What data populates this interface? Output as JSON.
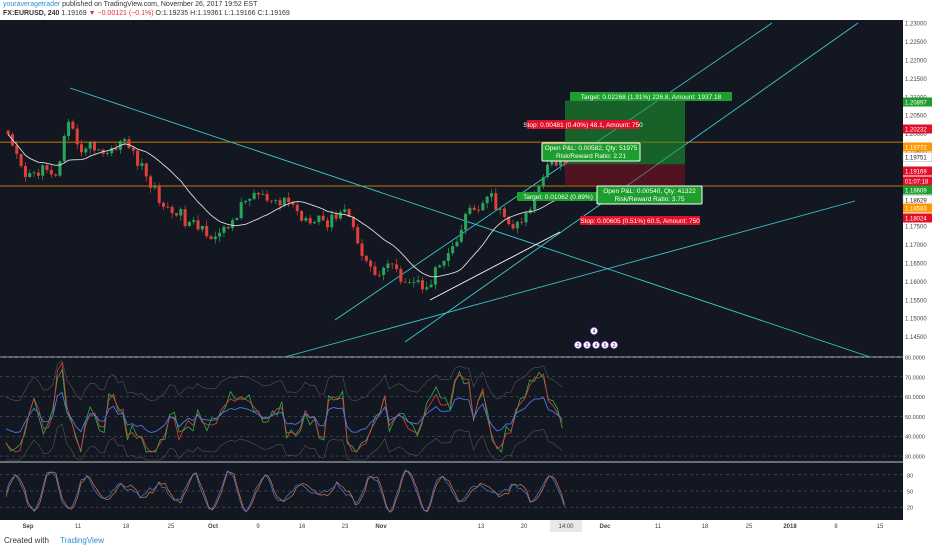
{
  "header": {
    "user": "youraveragetrader",
    "published": "published on TradingView.com, November 26, 2017 19:52 EST",
    "symbol": "FX:EURUSD, 240",
    "last": "1.19169",
    "change": "▼ −0.00121 (−0.1%)",
    "ohlc": "O:1.19235 H:1.19361 L:1.19166 C:1.19169"
  },
  "footer": {
    "created": "Created with",
    "brand": "TradingView"
  },
  "colors": {
    "bg": "#131722",
    "up": "#26a65b",
    "down": "#e0403a",
    "cyan": "#3ec6cc",
    "white": "#e8e8e8",
    "orange": "#ff9800",
    "target": "#1e9e2e",
    "stop": "#e0102a"
  },
  "chart_data": [
    {
      "type": "candlestick",
      "title": "FX:EURUSD, 240",
      "ylim": [
        1.1395,
        1.2308
      ],
      "y_ticks": [
        1.145,
        1.15,
        1.155,
        1.16,
        1.165,
        1.17,
        1.175,
        1.18,
        1.185,
        1.19,
        1.195,
        1.2,
        1.205,
        1.21,
        1.215,
        1.22,
        1.225,
        1.23
      ],
      "x_ticks": [
        "Sep",
        "11",
        "18",
        "25",
        "Oct",
        "9",
        "16",
        "23",
        "Nov",
        "13",
        "20",
        "14:00",
        "Dec",
        "11",
        "18",
        "25",
        "2018",
        "8",
        "15"
      ],
      "close_path": [
        1.1985,
        1.193,
        1.188,
        1.189,
        1.191,
        1.188,
        1.19,
        1.202,
        1.199,
        1.195,
        1.197,
        1.1955,
        1.1945,
        1.198,
        1.1975,
        1.194,
        1.19,
        1.186,
        1.182,
        1.179,
        1.1795,
        1.176,
        1.175,
        1.1745,
        1.173,
        1.172,
        1.1745,
        1.178,
        1.181,
        1.184,
        1.183,
        1.181,
        1.18,
        1.183,
        1.1795,
        1.177,
        1.1775,
        1.178,
        1.175,
        1.179,
        1.18,
        1.174,
        1.168,
        1.163,
        1.162,
        1.165,
        1.162,
        1.161,
        1.16,
        1.159,
        1.16,
        1.164,
        1.166,
        1.169,
        1.176,
        1.181,
        1.178,
        1.184,
        1.18,
        1.176,
        1.1745,
        1.176,
        1.18,
        1.187,
        1.193,
        1.1925,
        1.19169
      ],
      "price_labels": [
        {
          "value": "1.20897",
          "color": "#1e9e2e"
        },
        {
          "value": "1.20232",
          "color": "#e0102a"
        },
        {
          "value": "1.19772",
          "color": "#ff9800"
        },
        {
          "value": "1.19751",
          "color": "#ffffff"
        },
        {
          "value": "1.19169",
          "color": "#e0102a"
        },
        {
          "value": "01:07:18",
          "color": "#e0102a"
        },
        {
          "value": "1.18609",
          "color": "#1e9e2e"
        },
        {
          "value": "1.18629",
          "color": "#ffffff"
        },
        {
          "value": "1.18583",
          "color": "#ff9800"
        },
        {
          "value": "1.18024",
          "color": "#e0102a"
        }
      ],
      "annotations": [
        {
          "text": "Target: 0.02268 (1.91%) 226.8, Amount: 1937.18",
          "kind": "target"
        },
        {
          "text": "Stop: 0.00481 (0.40%) 48.1, Amount: 750",
          "kind": "stop"
        },
        {
          "text": "Open P&L: 0.00582, Qty: 51975",
          "kind": "pnl"
        },
        {
          "text": "Risk/Reward Ratio: 2.21",
          "kind": "pnl"
        },
        {
          "text": "Target: 0.01062 (0.89%)",
          "kind": "target"
        },
        {
          "text": "Open P&L: 0.00540, Qty: 41322",
          "kind": "pnl"
        },
        {
          "text": "Risk/Reward Ratio: 3.75",
          "kind": "pnl"
        },
        {
          "text": "Stop: 0.00605 (0.51%) 60.5, Amount: 750",
          "kind": "stop"
        }
      ],
      "wave_labels": [
        "4",
        "2",
        "3",
        "4",
        "5",
        "2"
      ]
    },
    {
      "type": "line",
      "title": "RSI",
      "ylim": [
        27,
        80
      ],
      "y_ticks": [
        "30.0000",
        "40.0000",
        "50.0000",
        "60.0000",
        "70.0000",
        "80.0000"
      ]
    },
    {
      "type": "line",
      "title": "Stochastic",
      "ylim": [
        0,
        100
      ],
      "y_ticks": [
        "20",
        "50",
        "80"
      ]
    }
  ]
}
